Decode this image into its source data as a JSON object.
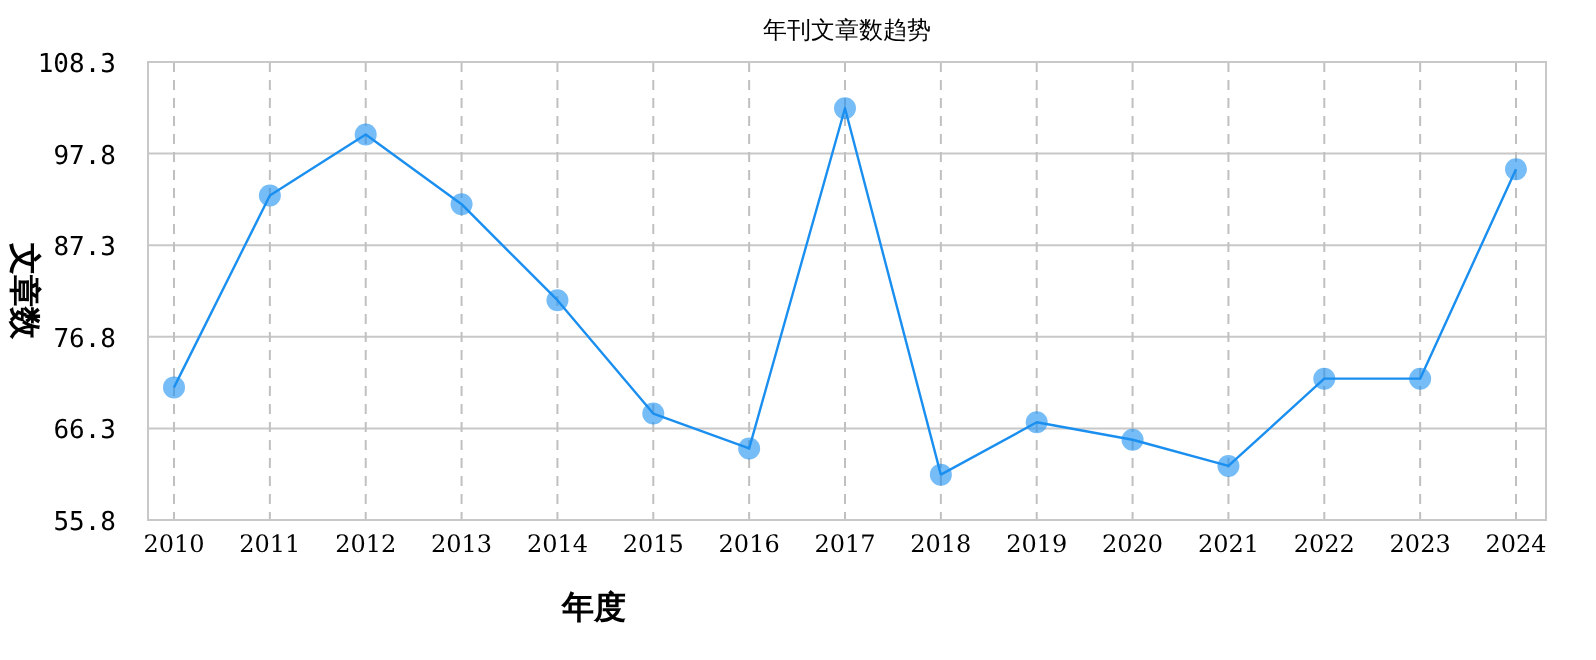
{
  "chart_data": {
    "type": "line",
    "title": "年刊文章数趋势",
    "xlabel": "年度",
    "ylabel": "文章数",
    "categories": [
      "2010",
      "2011",
      "2012",
      "2013",
      "2014",
      "2015",
      "2016",
      "2017",
      "2018",
      "2019",
      "2020",
      "2021",
      "2022",
      "2023",
      "2024"
    ],
    "series": [
      {
        "color": "#1a8ff0",
        "values": [
          71,
          93,
          100,
          92,
          81,
          68,
          64,
          103,
          61,
          67,
          65,
          62,
          72,
          72,
          96
        ]
      }
    ],
    "ylim": [
      55.8,
      108.3
    ],
    "yticks": [
      55.8,
      66.3,
      76.8,
      87.3,
      97.8,
      108.3
    ],
    "grid": true,
    "marker": "circle",
    "line_style": "solid"
  }
}
